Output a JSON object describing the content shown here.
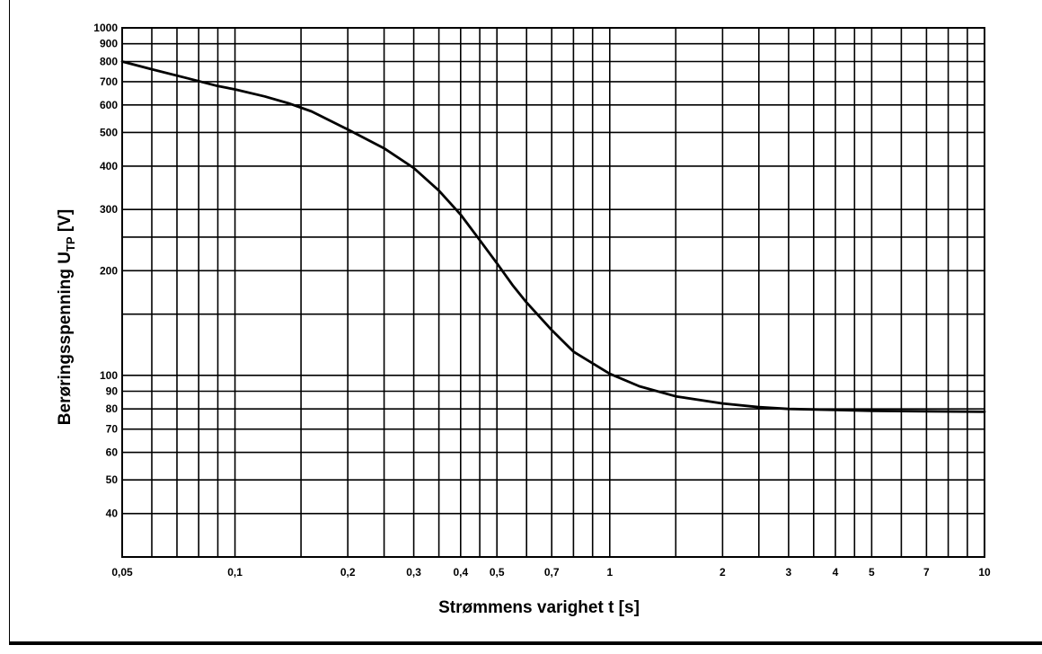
{
  "chart_data": {
    "type": "line",
    "title": "",
    "xlabel": "Strømmens varighet  t [s]",
    "ylabel": {
      "main": "Berøringsspenning U",
      "subscript": "TP",
      "unit": " [V]"
    },
    "x_scale": "log",
    "y_scale": "log",
    "xlim": [
      0.05,
      10
    ],
    "ylim": [
      30,
      1000
    ],
    "grid": true,
    "legend": "none",
    "x_ticks": [
      {
        "value": 0.05,
        "label": "0,05"
      },
      {
        "value": 0.1,
        "label": "0,1"
      },
      {
        "value": 0.2,
        "label": "0,2"
      },
      {
        "value": 0.3,
        "label": "0,3"
      },
      {
        "value": 0.4,
        "label": "0,4"
      },
      {
        "value": 0.5,
        "label": "0,5"
      },
      {
        "value": 0.7,
        "label": "0,7"
      },
      {
        "value": 1,
        "label": "1"
      },
      {
        "value": 2,
        "label": "2"
      },
      {
        "value": 3,
        "label": "3"
      },
      {
        "value": 4,
        "label": "4"
      },
      {
        "value": 5,
        "label": "5"
      },
      {
        "value": 7,
        "label": "7"
      },
      {
        "value": 10,
        "label": "10"
      }
    ],
    "y_ticks": [
      {
        "value": 40,
        "label": "40"
      },
      {
        "value": 50,
        "label": "50"
      },
      {
        "value": 60,
        "label": "60"
      },
      {
        "value": 70,
        "label": "70"
      },
      {
        "value": 80,
        "label": "80"
      },
      {
        "value": 90,
        "label": "90"
      },
      {
        "value": 100,
        "label": "100"
      },
      {
        "value": 200,
        "label": "200"
      },
      {
        "value": 300,
        "label": "300"
      },
      {
        "value": 400,
        "label": "400"
      },
      {
        "value": 500,
        "label": "500"
      },
      {
        "value": 600,
        "label": "600"
      },
      {
        "value": 700,
        "label": "700"
      },
      {
        "value": 800,
        "label": "800"
      },
      {
        "value": 900,
        "label": "900"
      },
      {
        "value": 1000,
        "label": "1000"
      }
    ],
    "x_gridlines": [
      0.05,
      0.06,
      0.07,
      0.08,
      0.09,
      0.1,
      0.15,
      0.2,
      0.25,
      0.3,
      0.35,
      0.4,
      0.45,
      0.5,
      0.6,
      0.7,
      0.8,
      0.9,
      1,
      1.5,
      2,
      2.5,
      3,
      3.5,
      4,
      4.5,
      5,
      6,
      7,
      8,
      9,
      10
    ],
    "y_gridlines": [
      40,
      50,
      60,
      70,
      80,
      90,
      100,
      150,
      200,
      250,
      300,
      400,
      500,
      600,
      700,
      800,
      900,
      1000
    ],
    "series": [
      {
        "color": "#000000",
        "x": [
          0.05,
          0.06,
          0.075,
          0.09,
          0.1,
          0.12,
          0.14,
          0.16,
          0.2,
          0.25,
          0.3,
          0.35,
          0.4,
          0.45,
          0.5,
          0.55,
          0.6,
          0.7,
          0.8,
          1,
          1.2,
          1.5,
          2,
          2.5,
          3,
          4,
          5,
          7,
          10
        ],
        "y": [
          800,
          760,
          715,
          680,
          665,
          635,
          605,
          575,
          510,
          450,
          395,
          340,
          290,
          245,
          210,
          182,
          162,
          135,
          117,
          101,
          93,
          87,
          83,
          81,
          80,
          79.5,
          79,
          78.8,
          78.5
        ]
      }
    ]
  }
}
